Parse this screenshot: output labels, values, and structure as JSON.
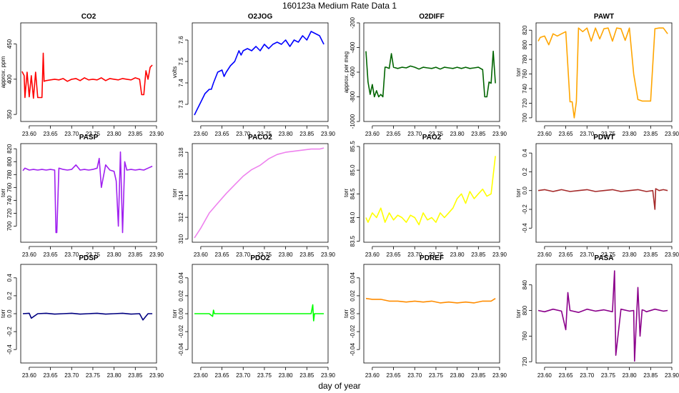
{
  "figure": {
    "title": "160123a   Medium Rate Data 1",
    "xlabel": "day of year"
  },
  "chart_data": [
    {
      "type": "line",
      "title": "CO2",
      "ylabel": "approx. ppm",
      "color": "#ff0000",
      "xlim": [
        23.58,
        23.9
      ],
      "ylim": [
        340,
        480
      ],
      "xticks": [
        "23.60",
        "23.65",
        "23.70",
        "23.75",
        "23.80",
        "23.85",
        "23.90"
      ],
      "yticks": [
        "350",
        "400",
        "450"
      ],
      "series": [
        {
          "x": [
            23.583,
            23.588,
            23.59,
            23.595,
            23.6,
            23.605,
            23.61,
            23.615,
            23.62,
            23.63,
            23.633,
            23.635,
            23.64,
            23.65,
            23.66,
            23.67,
            23.68,
            23.69,
            23.7,
            23.71,
            23.72,
            23.73,
            23.74,
            23.75,
            23.76,
            23.77,
            23.78,
            23.79,
            23.8,
            23.81,
            23.82,
            23.83,
            23.84,
            23.85,
            23.86,
            23.865,
            23.87,
            23.875,
            23.88,
            23.885,
            23.89
          ],
          "values": [
            411,
            405,
            374,
            410,
            375,
            405,
            373,
            410,
            374,
            374,
            437,
            397,
            398,
            399,
            400,
            399,
            401,
            397,
            400,
            401,
            398,
            402,
            399,
            400,
            399,
            402,
            398,
            401,
            400,
            399,
            401,
            400,
            399,
            402,
            400,
            378,
            378,
            412,
            400,
            417,
            420
          ]
        }
      ]
    },
    {
      "type": "line",
      "title": "O2JOG",
      "ylabel": "volts",
      "color": "#0000ff",
      "xlim": [
        23.58,
        23.9
      ],
      "ylim": [
        7.22,
        7.68
      ],
      "xticks": [
        "23.60",
        "23.65",
        "23.70",
        "23.75",
        "23.80",
        "23.85",
        "23.90"
      ],
      "yticks": [
        "7.3",
        "7.4",
        "7.5",
        "7.6"
      ],
      "series": [
        {
          "x": [
            23.585,
            23.59,
            23.6,
            23.61,
            23.62,
            23.625,
            23.63,
            23.64,
            23.65,
            23.655,
            23.66,
            23.67,
            23.68,
            23.69,
            23.695,
            23.7,
            23.71,
            23.72,
            23.73,
            23.74,
            23.75,
            23.76,
            23.77,
            23.78,
            23.79,
            23.8,
            23.81,
            23.82,
            23.83,
            23.84,
            23.85,
            23.86,
            23.87,
            23.88,
            23.89
          ],
          "values": [
            7.25,
            7.27,
            7.31,
            7.35,
            7.37,
            7.37,
            7.4,
            7.45,
            7.46,
            7.43,
            7.45,
            7.48,
            7.5,
            7.55,
            7.53,
            7.55,
            7.56,
            7.55,
            7.57,
            7.55,
            7.58,
            7.56,
            7.58,
            7.59,
            7.58,
            7.6,
            7.57,
            7.6,
            7.59,
            7.62,
            7.6,
            7.64,
            7.63,
            7.62,
            7.58
          ]
        }
      ]
    },
    {
      "type": "line",
      "title": "O2DIFF",
      "ylabel": "approx. per meg",
      "color": "#006400",
      "xlim": [
        23.58,
        23.9
      ],
      "ylim": [
        -1000,
        -200
      ],
      "xticks": [
        "23.60",
        "23.65",
        "23.70",
        "23.75",
        "23.80",
        "23.85",
        "23.90"
      ],
      "yticks": [
        "-1000",
        "-800",
        "-600",
        "-400",
        "-200"
      ],
      "series": [
        {
          "x": [
            23.585,
            23.59,
            23.595,
            23.6,
            23.605,
            23.61,
            23.615,
            23.62,
            23.625,
            23.63,
            23.633,
            23.64,
            23.645,
            23.65,
            23.66,
            23.67,
            23.68,
            23.69,
            23.7,
            23.71,
            23.72,
            23.73,
            23.74,
            23.75,
            23.76,
            23.77,
            23.78,
            23.79,
            23.8,
            23.81,
            23.82,
            23.83,
            23.84,
            23.85,
            23.86,
            23.865,
            23.87,
            23.875,
            23.88,
            23.885,
            23.89
          ],
          "values": [
            -430,
            -680,
            -780,
            -700,
            -800,
            -750,
            -800,
            -780,
            -800,
            -560,
            -560,
            -570,
            -450,
            -560,
            -570,
            -560,
            -565,
            -550,
            -560,
            -575,
            -560,
            -565,
            -570,
            -560,
            -575,
            -560,
            -565,
            -570,
            -560,
            -570,
            -560,
            -570,
            -565,
            -560,
            -580,
            -800,
            -800,
            -680,
            -690,
            -430,
            -690
          ]
        }
      ]
    },
    {
      "type": "line",
      "title": "PAWT",
      "ylabel": "torr",
      "color": "#ffa500",
      "xlim": [
        23.58,
        23.9
      ],
      "ylim": [
        695,
        830
      ],
      "xticks": [
        "23.60",
        "23.65",
        "23.70",
        "23.75",
        "23.80",
        "23.85",
        "23.90"
      ],
      "yticks": [
        "700",
        "720",
        "740",
        "760",
        "780",
        "800",
        "820"
      ],
      "series": [
        {
          "x": [
            23.585,
            23.59,
            23.6,
            23.61,
            23.62,
            23.63,
            23.64,
            23.65,
            23.66,
            23.665,
            23.67,
            23.675,
            23.68,
            23.69,
            23.7,
            23.71,
            23.72,
            23.73,
            23.74,
            23.75,
            23.76,
            23.77,
            23.78,
            23.79,
            23.8,
            23.81,
            23.82,
            23.83,
            23.84,
            23.85,
            23.86,
            23.87,
            23.88,
            23.89
          ],
          "values": [
            805,
            810,
            812,
            800,
            815,
            812,
            815,
            818,
            722,
            722,
            700,
            722,
            823,
            818,
            823,
            805,
            823,
            808,
            822,
            823,
            805,
            823,
            822,
            806,
            823,
            760,
            725,
            723,
            723,
            723,
            822,
            823,
            823,
            815
          ]
        }
      ]
    },
    {
      "type": "line",
      "title": "PASP",
      "ylabel": "torr",
      "color": "#a020f0",
      "xlim": [
        23.58,
        23.9
      ],
      "ylim": [
        675,
        828
      ],
      "xticks": [
        "23.60",
        "23.65",
        "23.70",
        "23.75",
        "23.80",
        "23.85",
        "23.90"
      ],
      "yticks": [
        "700",
        "720",
        "740",
        "760",
        "780",
        "800",
        "820"
      ],
      "series": [
        {
          "x": [
            23.585,
            23.59,
            23.6,
            23.61,
            23.62,
            23.63,
            23.64,
            23.65,
            23.66,
            23.663,
            23.665,
            23.67,
            23.68,
            23.69,
            23.7,
            23.71,
            23.72,
            23.73,
            23.74,
            23.75,
            23.76,
            23.765,
            23.77,
            23.78,
            23.79,
            23.8,
            23.805,
            23.81,
            23.815,
            23.82,
            23.825,
            23.83,
            23.84,
            23.85,
            23.86,
            23.87,
            23.88,
            23.89
          ],
          "values": [
            786,
            790,
            787,
            788,
            787,
            788,
            787,
            788,
            787,
            690,
            690,
            790,
            788,
            787,
            788,
            795,
            787,
            788,
            787,
            788,
            790,
            805,
            760,
            795,
            787,
            785,
            770,
            700,
            815,
            690,
            800,
            787,
            788,
            787,
            788,
            787,
            790,
            793
          ]
        }
      ]
    },
    {
      "type": "line",
      "title": "PACO2",
      "ylabel": "torr",
      "color": "#ee82ee",
      "xlim": [
        23.58,
        23.9
      ],
      "ylim": [
        309.7,
        318.8
      ],
      "xticks": [
        "23.60",
        "23.65",
        "23.70",
        "23.75",
        "23.80",
        "23.85",
        "23.90"
      ],
      "yticks": [
        "310",
        "312",
        "314",
        "316",
        "318"
      ],
      "series": [
        {
          "x": [
            23.585,
            23.6,
            23.62,
            23.64,
            23.66,
            23.68,
            23.7,
            23.72,
            23.74,
            23.76,
            23.78,
            23.8,
            23.82,
            23.84,
            23.86,
            23.88,
            23.89
          ],
          "values": [
            310.1,
            311.0,
            312.4,
            313.3,
            314.2,
            315.0,
            315.8,
            316.4,
            316.8,
            317.4,
            317.8,
            318.0,
            318.1,
            318.2,
            318.3,
            318.3,
            318.4
          ]
        }
      ]
    },
    {
      "type": "line",
      "title": "PAO2",
      "ylabel": "torr",
      "color": "#ffff00",
      "xlim": [
        23.58,
        23.9
      ],
      "ylim": [
        83.48,
        85.56
      ],
      "xticks": [
        "23.60",
        "23.65",
        "23.70",
        "23.75",
        "23.80",
        "23.85",
        "23.90"
      ],
      "yticks": [
        "83.5",
        "84.0",
        "84.5",
        "85.0",
        "85.5"
      ],
      "series": [
        {
          "x": [
            23.585,
            23.59,
            23.6,
            23.61,
            23.62,
            23.63,
            23.64,
            23.65,
            23.66,
            23.67,
            23.68,
            23.69,
            23.7,
            23.71,
            23.72,
            23.73,
            23.74,
            23.75,
            23.76,
            23.77,
            23.78,
            23.79,
            23.8,
            23.81,
            23.82,
            23.83,
            23.84,
            23.85,
            23.86,
            23.87,
            23.88,
            23.885,
            23.89
          ],
          "values": [
            84.0,
            83.9,
            84.1,
            84.0,
            84.2,
            83.9,
            84.1,
            83.95,
            84.05,
            84.0,
            83.9,
            84.05,
            84.0,
            83.85,
            84.1,
            83.95,
            84.0,
            83.9,
            84.1,
            84.0,
            84.1,
            84.2,
            84.4,
            84.5,
            84.3,
            84.55,
            84.4,
            84.5,
            84.6,
            84.45,
            84.5,
            84.9,
            85.3
          ]
        }
      ]
    },
    {
      "type": "line",
      "title": "PDWT",
      "ylabel": "torr",
      "color": "#a52a2a",
      "xlim": [
        23.58,
        23.9
      ],
      "ylim": [
        -0.55,
        0.5
      ],
      "xticks": [
        "23.60",
        "23.65",
        "23.70",
        "23.75",
        "23.80",
        "23.85",
        "23.90"
      ],
      "yticks": [
        "-0.4",
        "-0.2",
        "0.0",
        "0.2",
        "0.4"
      ],
      "series": [
        {
          "x": [
            23.585,
            23.6,
            23.62,
            23.63,
            23.64,
            23.66,
            23.68,
            23.7,
            23.72,
            23.74,
            23.76,
            23.78,
            23.8,
            23.82,
            23.84,
            23.855,
            23.86,
            23.862,
            23.87,
            23.88,
            23.89
          ],
          "values": [
            0.0,
            0.01,
            -0.01,
            0.0,
            0.01,
            -0.01,
            0.0,
            0.01,
            -0.01,
            0.0,
            0.01,
            -0.01,
            0.0,
            0.01,
            -0.01,
            0.0,
            -0.2,
            0.02,
            0.0,
            0.01,
            0.0
          ]
        }
      ]
    },
    {
      "type": "line",
      "title": "PDSP",
      "ylabel": "torr",
      "color": "#000080",
      "xlim": [
        23.58,
        23.9
      ],
      "ylim": [
        -0.55,
        0.55
      ],
      "xticks": [
        "23.60",
        "23.65",
        "23.70",
        "23.75",
        "23.80",
        "23.85",
        "23.90"
      ],
      "yticks": [
        "-0.4",
        "-0.2",
        "0.0",
        "0.2",
        "0.4"
      ],
      "series": [
        {
          "x": [
            23.585,
            23.6,
            23.605,
            23.62,
            23.64,
            23.66,
            23.68,
            23.7,
            23.72,
            23.74,
            23.76,
            23.78,
            23.8,
            23.82,
            23.84,
            23.86,
            23.868,
            23.88,
            23.89
          ],
          "values": [
            0.0,
            0.005,
            -0.05,
            0.0,
            0.005,
            -0.005,
            0.0,
            0.005,
            -0.005,
            0.0,
            0.005,
            -0.005,
            0.0,
            0.005,
            -0.005,
            0.0,
            -0.07,
            0.0,
            0.0
          ]
        }
      ]
    },
    {
      "type": "line",
      "title": "PDO2",
      "ylabel": "torr",
      "color": "#00ff00",
      "xlim": [
        23.58,
        23.9
      ],
      "ylim": [
        -0.055,
        0.055
      ],
      "xticks": [
        "23.60",
        "23.65",
        "23.70",
        "23.75",
        "23.80",
        "23.85",
        "23.90"
      ],
      "yticks": [
        "-0.04",
        "-0.02",
        "0.00",
        "0.02",
        "0.04"
      ],
      "series": [
        {
          "x": [
            23.585,
            23.6,
            23.62,
            23.628,
            23.63,
            23.632,
            23.64,
            23.68,
            23.72,
            23.76,
            23.8,
            23.84,
            23.86,
            23.864,
            23.866,
            23.868,
            23.88,
            23.89
          ],
          "values": [
            0.0,
            0.0,
            0.0,
            -0.003,
            0.004,
            0.0,
            0.0,
            0.0,
            0.0,
            0.0,
            0.0,
            0.0,
            0.0,
            0.01,
            -0.008,
            0.0,
            0.0,
            0.0
          ]
        }
      ]
    },
    {
      "type": "line",
      "title": "PDREF",
      "ylabel": "torr",
      "color": "#ff8c00",
      "xlim": [
        23.58,
        23.9
      ],
      "ylim": [
        -0.055,
        0.055
      ],
      "xticks": [
        "23.60",
        "23.65",
        "23.70",
        "23.75",
        "23.80",
        "23.85",
        "23.90"
      ],
      "yticks": [
        "-0.04",
        "-0.02",
        "0.00",
        "0.02",
        "0.04"
      ],
      "series": [
        {
          "x": [
            23.585,
            23.6,
            23.62,
            23.64,
            23.66,
            23.68,
            23.7,
            23.72,
            23.74,
            23.76,
            23.78,
            23.8,
            23.82,
            23.84,
            23.86,
            23.88,
            23.89
          ],
          "values": [
            0.017,
            0.016,
            0.016,
            0.014,
            0.014,
            0.013,
            0.014,
            0.013,
            0.014,
            0.012,
            0.013,
            0.012,
            0.013,
            0.012,
            0.014,
            0.014,
            0.017
          ]
        }
      ]
    },
    {
      "type": "line",
      "title": "PASA",
      "ylabel": "torr",
      "color": "#8b008b",
      "xlim": [
        23.58,
        23.9
      ],
      "ylim": [
        718,
        872
      ],
      "xticks": [
        "23.60",
        "23.65",
        "23.70",
        "23.75",
        "23.80",
        "23.85",
        "23.90"
      ],
      "yticks": [
        "720",
        "760",
        "800",
        "840"
      ],
      "series": [
        {
          "x": [
            23.585,
            23.6,
            23.62,
            23.64,
            23.65,
            23.655,
            23.66,
            23.68,
            23.7,
            23.72,
            23.74,
            23.76,
            23.765,
            23.768,
            23.78,
            23.8,
            23.81,
            23.812,
            23.82,
            23.825,
            23.83,
            23.835,
            23.84,
            23.86,
            23.88,
            23.89
          ],
          "values": [
            800,
            798,
            802,
            799,
            770,
            828,
            800,
            797,
            802,
            799,
            801,
            798,
            862,
            730,
            802,
            799,
            800,
            721,
            836,
            760,
            801,
            800,
            798,
            802,
            799,
            800
          ]
        }
      ]
    }
  ]
}
